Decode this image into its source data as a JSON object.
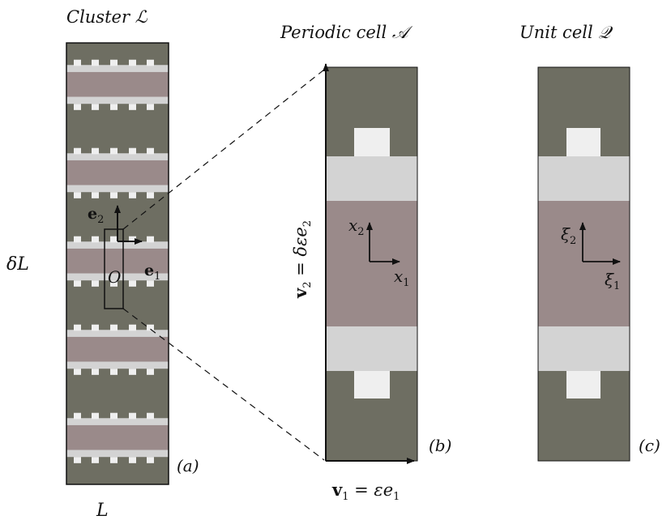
{
  "titles": {
    "cluster": "Cluster ℒ",
    "periodic": "Periodic cell 𝒜",
    "unit": "Unit cell 𝒬"
  },
  "labels": {
    "delta_L": "δL",
    "L": "L",
    "panel_a": "(a)",
    "panel_b": "(b)",
    "panel_c": "(c)",
    "origin": "O"
  },
  "vectors": {
    "e1": "e",
    "e1_sub": "1",
    "e2": "e",
    "e2_sub": "2",
    "v1_lhs": "v",
    "v1_lhs_sub": "1",
    "v1_rhs": " = εe",
    "v1_rhs_sub": "1",
    "v2_lhs": "v",
    "v2_lhs_sub": "2",
    "v2_rhs": " = δεe",
    "v2_rhs_sub": "2"
  },
  "axes_b": {
    "x1": "x",
    "x1_sub": "1",
    "x2": "x",
    "x2_sub": "2"
  },
  "axes_c": {
    "xi1": "ξ",
    "xi1_sub": "1",
    "xi2": "ξ",
    "xi2_sub": "2"
  },
  "colors": {
    "matrix_dark": "#6e6e62",
    "band_light": "#d3d3d3",
    "core_pink": "#9a8a8a",
    "inclusion_white": "#efefef",
    "outline": "#111111"
  },
  "cluster_cells": 5
}
